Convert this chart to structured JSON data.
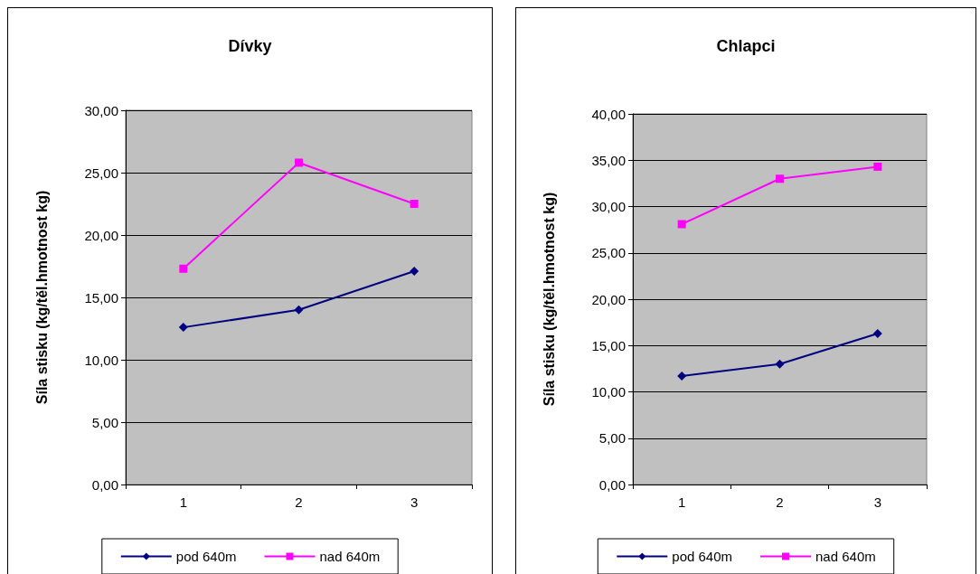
{
  "chart_data": [
    {
      "type": "line",
      "title": "Dívky",
      "ylabel": "Síla stisku (kg/těl.hmotnost kg)",
      "categories": [
        "1",
        "2",
        "3"
      ],
      "series": [
        {
          "name": "pod 640m",
          "color": "#000080",
          "marker": "diamond",
          "values": [
            12.6,
            14.0,
            17.1
          ]
        },
        {
          "name": "nad 640m",
          "color": "#ff00ff",
          "marker": "square",
          "values": [
            17.3,
            25.8,
            22.5
          ]
        }
      ],
      "ylim": [
        0,
        30
      ],
      "yticks": [
        {
          "value": 0,
          "label": "0,00"
        },
        {
          "value": 5,
          "label": "5,00"
        },
        {
          "value": 10,
          "label": "10,00"
        },
        {
          "value": 15,
          "label": "15,00"
        },
        {
          "value": 20,
          "label": "20,00"
        },
        {
          "value": 25,
          "label": "25,00"
        },
        {
          "value": 30,
          "label": "30,00"
        }
      ],
      "grid": "y",
      "legend": "bottom",
      "line_style": "solid"
    },
    {
      "type": "line",
      "title": "Chlapci",
      "ylabel": "Síla stisku (kg/těl.hmotnost kg)",
      "categories": [
        "1",
        "2",
        "3"
      ],
      "series": [
        {
          "name": "pod 640m",
          "color": "#000080",
          "marker": "diamond",
          "values": [
            11.7,
            13.0,
            16.3
          ]
        },
        {
          "name": "nad 640m",
          "color": "#ff00ff",
          "marker": "square",
          "values": [
            28.1,
            33.0,
            34.3
          ]
        }
      ],
      "ylim": [
        0,
        40
      ],
      "yticks": [
        {
          "value": 0,
          "label": "0,00"
        },
        {
          "value": 5,
          "label": "5,00"
        },
        {
          "value": 10,
          "label": "10,00"
        },
        {
          "value": 15,
          "label": "15,00"
        },
        {
          "value": 20,
          "label": "20,00"
        },
        {
          "value": 25,
          "label": "25,00"
        },
        {
          "value": 30,
          "label": "30,00"
        },
        {
          "value": 35,
          "label": "35,00"
        },
        {
          "value": 40,
          "label": "40,00"
        }
      ],
      "grid": "y",
      "legend": "bottom",
      "line_style": "solid"
    }
  ]
}
